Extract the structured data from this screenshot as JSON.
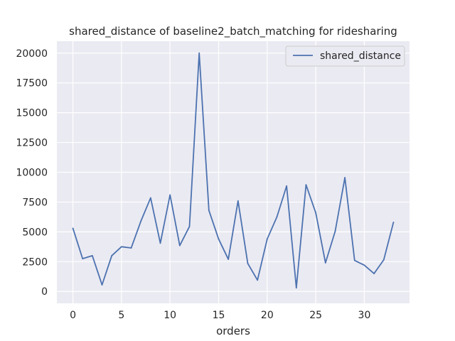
{
  "chart_data": {
    "type": "line",
    "title": "shared_distance of baseline2_batch_matching for ridesharing",
    "xlabel": "orders",
    "ylabel": "",
    "xlim": [
      -1.65,
      34.65
    ],
    "ylim": [
      -1000,
      21000
    ],
    "xticks": [
      0,
      5,
      10,
      15,
      20,
      25,
      30
    ],
    "yticks": [
      0,
      2500,
      5000,
      7500,
      10000,
      12500,
      15000,
      17500,
      20000
    ],
    "grid": true,
    "legend_position": "top-right",
    "series": [
      {
        "name": "shared_distance",
        "color": "#4c72b0",
        "x": [
          0,
          1,
          2,
          3,
          4,
          5,
          6,
          7,
          8,
          9,
          10,
          11,
          12,
          13,
          14,
          15,
          16,
          17,
          18,
          19,
          20,
          21,
          22,
          23,
          24,
          25,
          26,
          27,
          28,
          29,
          30,
          31,
          32,
          33
        ],
        "values": [
          5300,
          2750,
          3000,
          550,
          3000,
          3750,
          3650,
          5900,
          7850,
          4050,
          8100,
          3850,
          5450,
          20000,
          6800,
          4400,
          2700,
          7600,
          2350,
          950,
          4400,
          6250,
          8850,
          300,
          8950,
          6600,
          2400,
          5050,
          9550,
          2600,
          2200,
          1500,
          2650,
          5800
        ]
      }
    ]
  },
  "colors": {
    "plot_background": "#eaeaf2",
    "grid": "#ffffff",
    "text": "#262626"
  }
}
